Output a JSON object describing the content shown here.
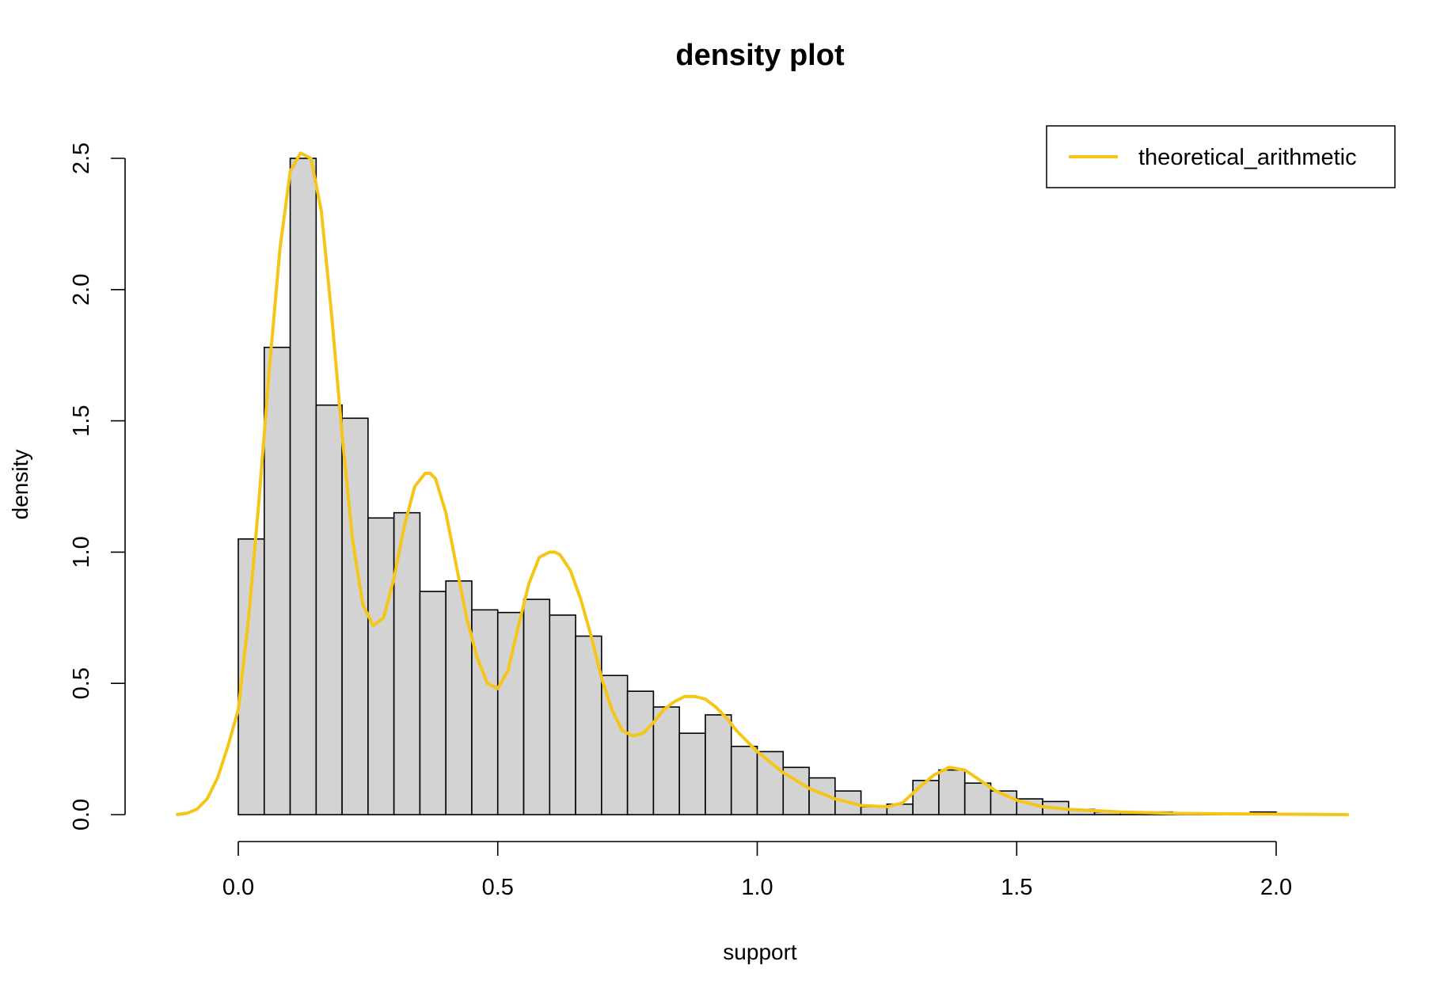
{
  "chart_data": {
    "type": "histogram",
    "title": "density plot",
    "xlabel": "support",
    "ylabel": "density",
    "xlim": [
      -0.13,
      2.14
    ],
    "ylim": [
      0,
      2.5
    ],
    "xticks": [
      0.0,
      0.5,
      1.0,
      1.5,
      2.0
    ],
    "xtick_labels": [
      "0.0",
      "0.5",
      "1.0",
      "1.5",
      "2.0"
    ],
    "yticks": [
      0.0,
      0.5,
      1.0,
      1.5,
      2.0,
      2.5
    ],
    "ytick_labels": [
      "0.0",
      "0.5",
      "1.0",
      "1.5",
      "2.0",
      "2.5"
    ],
    "bin_width": 0.05,
    "bins": {
      "start": [
        0.0,
        0.05,
        0.1,
        0.15,
        0.2,
        0.25,
        0.3,
        0.35,
        0.4,
        0.45,
        0.5,
        0.55,
        0.6,
        0.65,
        0.7,
        0.75,
        0.8,
        0.85,
        0.9,
        0.95,
        1.0,
        1.05,
        1.1,
        1.15,
        1.2,
        1.25,
        1.3,
        1.35,
        1.4,
        1.45,
        1.5,
        1.55,
        1.6,
        1.65,
        1.7,
        1.75,
        1.8,
        1.85,
        1.9,
        1.95
      ],
      "density": [
        1.05,
        1.78,
        2.5,
        1.56,
        1.51,
        1.13,
        1.15,
        0.85,
        0.89,
        0.78,
        0.77,
        0.82,
        0.76,
        0.68,
        0.53,
        0.47,
        0.41,
        0.31,
        0.38,
        0.26,
        0.24,
        0.18,
        0.14,
        0.09,
        0.03,
        0.04,
        0.13,
        0.17,
        0.12,
        0.09,
        0.06,
        0.05,
        0.02,
        0.01,
        0.01,
        0.01,
        0.005,
        0.005,
        0.005,
        0.01
      ]
    },
    "bar_fill": "#d3d3d3",
    "bar_stroke": "#000000",
    "series": [
      {
        "name": "theoretical_arithmetic",
        "type": "line",
        "color": "#f5c518",
        "x": [
          -0.12,
          -0.1,
          -0.08,
          -0.06,
          -0.04,
          -0.02,
          0.0,
          0.02,
          0.04,
          0.06,
          0.08,
          0.1,
          0.12,
          0.14,
          0.16,
          0.18,
          0.2,
          0.22,
          0.24,
          0.26,
          0.28,
          0.3,
          0.32,
          0.34,
          0.36,
          0.37,
          0.38,
          0.4,
          0.42,
          0.44,
          0.46,
          0.48,
          0.5,
          0.52,
          0.54,
          0.56,
          0.58,
          0.6,
          0.61,
          0.62,
          0.64,
          0.66,
          0.68,
          0.7,
          0.72,
          0.74,
          0.76,
          0.78,
          0.8,
          0.82,
          0.84,
          0.86,
          0.88,
          0.9,
          0.92,
          0.94,
          0.96,
          0.98,
          1.0,
          1.05,
          1.1,
          1.15,
          1.2,
          1.25,
          1.28,
          1.31,
          1.34,
          1.37,
          1.4,
          1.43,
          1.46,
          1.5,
          1.55,
          1.6,
          1.7,
          1.8,
          1.9,
          2.0,
          2.14
        ],
        "y": [
          0.0,
          0.005,
          0.02,
          0.06,
          0.14,
          0.26,
          0.4,
          0.75,
          1.2,
          1.7,
          2.15,
          2.45,
          2.52,
          2.5,
          2.3,
          1.9,
          1.45,
          1.05,
          0.8,
          0.72,
          0.75,
          0.9,
          1.1,
          1.25,
          1.3,
          1.3,
          1.28,
          1.15,
          0.95,
          0.75,
          0.6,
          0.5,
          0.48,
          0.55,
          0.72,
          0.88,
          0.98,
          1.0,
          1.0,
          0.99,
          0.93,
          0.82,
          0.68,
          0.52,
          0.4,
          0.32,
          0.3,
          0.31,
          0.35,
          0.4,
          0.43,
          0.45,
          0.45,
          0.44,
          0.41,
          0.37,
          0.32,
          0.28,
          0.24,
          0.16,
          0.1,
          0.06,
          0.035,
          0.03,
          0.045,
          0.1,
          0.15,
          0.18,
          0.17,
          0.13,
          0.09,
          0.055,
          0.03,
          0.02,
          0.01,
          0.005,
          0.003,
          0.002,
          0.0
        ]
      }
    ],
    "legend": {
      "position": "top-right",
      "entries": [
        "theoretical_arithmetic"
      ]
    }
  }
}
